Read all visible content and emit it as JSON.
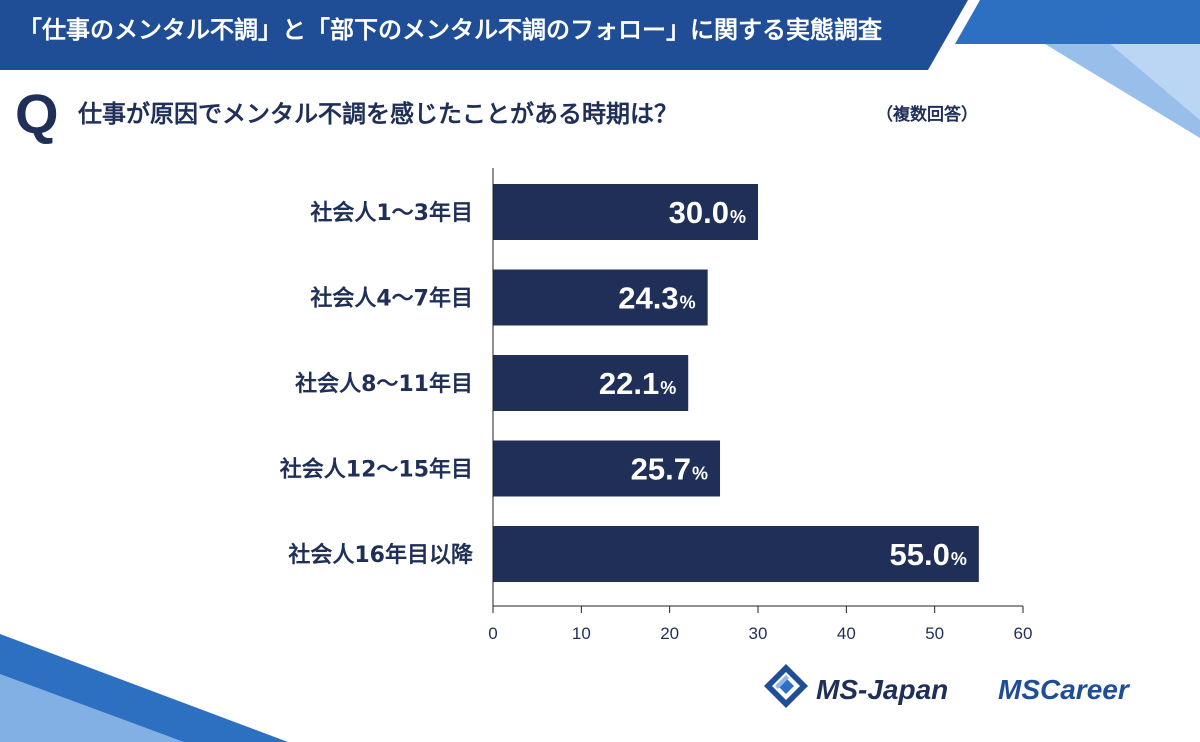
{
  "header": {
    "title": "「仕事のメンタル不調」と「部下のメンタル不調のフォロー」に関する実態調査"
  },
  "question": {
    "mark": "Q",
    "text": "仕事が原因でメンタル不調を感じたことがある時期は？",
    "note": "（複数回答）"
  },
  "chart_data": {
    "type": "bar",
    "orientation": "horizontal",
    "categories": [
      "社会人1～3年目",
      "社会人4～7年目",
      "社会人8～11年目",
      "社会人12～15年目",
      "社会人16年目以降"
    ],
    "values": [
      30.0,
      24.3,
      22.1,
      25.7,
      55.0
    ],
    "value_labels": [
      "30.0",
      "24.3",
      "22.1",
      "25.7",
      "55.0"
    ],
    "value_unit": "%",
    "xlim": [
      0,
      60
    ],
    "xticks": [
      "0",
      "10",
      "20",
      "30",
      "40",
      "50",
      "60"
    ],
    "grid": false,
    "legend": "none",
    "bar_color": "#1f2f57"
  },
  "logos": {
    "ms_japan": "MS-Japan",
    "ms_career_prefix": "MS",
    "ms_career_suffix": "Career"
  },
  "colors": {
    "header_blue": "#1f4d96",
    "accent_blue": "#2d6fc0",
    "navy": "#1f2f57"
  }
}
